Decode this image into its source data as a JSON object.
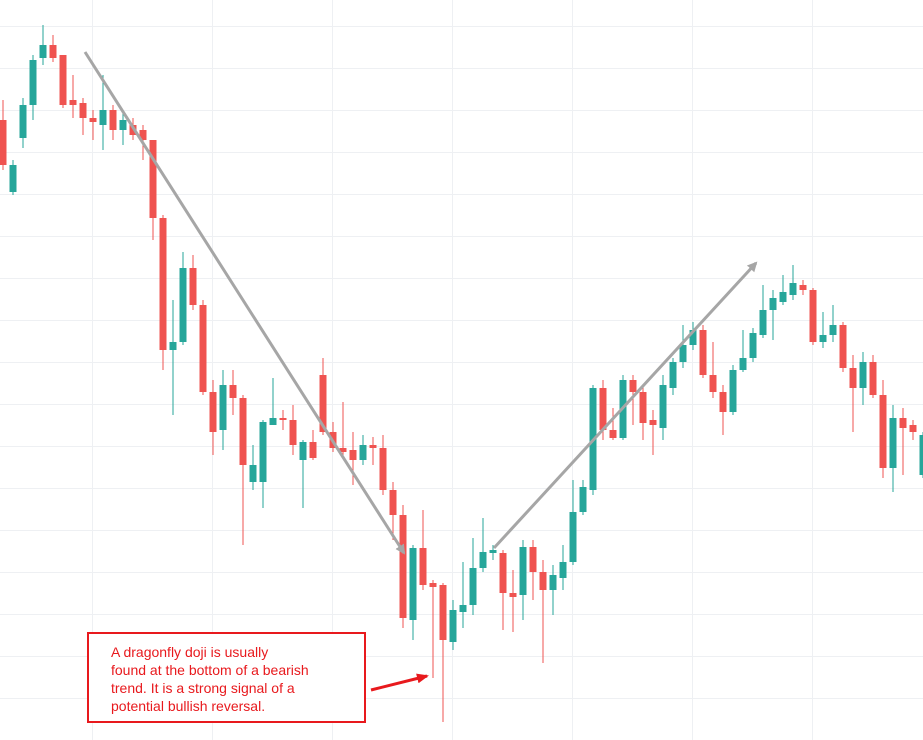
{
  "chart_data": {
    "type": "candlestick",
    "open": [
      620,
      548,
      602,
      635,
      682,
      695,
      685,
      640,
      637,
      622,
      615,
      630,
      610,
      615,
      610,
      600,
      522,
      390,
      398,
      472,
      435,
      348,
      310,
      355,
      342,
      258,
      258,
      315,
      322,
      320,
      280,
      298,
      365,
      308,
      292,
      290,
      280,
      295,
      292,
      250,
      225,
      120,
      192,
      157,
      155,
      98,
      128,
      135,
      172,
      187,
      187,
      147,
      145,
      193,
      168,
      150,
      162,
      178,
      228,
      250,
      352,
      310,
      302,
      360,
      348,
      320,
      312,
      352,
      378,
      395,
      410,
      365,
      348,
      328,
      370,
      382,
      405,
      430,
      438,
      445,
      455,
      450,
      398,
      405,
      415,
      372,
      352,
      378,
      345,
      272,
      322,
      315,
      265
    ],
    "high": [
      640,
      580,
      642,
      685,
      715,
      705,
      685,
      665,
      642,
      630,
      665,
      635,
      630,
      622,
      615,
      600,
      525,
      440,
      488,
      485,
      440,
      360,
      370,
      370,
      345,
      295,
      320,
      362,
      330,
      335,
      300,
      310,
      382,
      318,
      338,
      308,
      305,
      303,
      305,
      258,
      235,
      195,
      230,
      160,
      157,
      140,
      178,
      202,
      222,
      195,
      190,
      170,
      200,
      200,
      180,
      175,
      195,
      260,
      260,
      355,
      360,
      332,
      365,
      365,
      355,
      330,
      365,
      382,
      415,
      418,
      415,
      398,
      355,
      375,
      410,
      412,
      455,
      450,
      465,
      475,
      460,
      452,
      428,
      435,
      418,
      385,
      388,
      385,
      360,
      335,
      332,
      320,
      308
    ],
    "low": [
      570,
      545,
      592,
      620,
      675,
      678,
      632,
      622,
      605,
      600,
      590,
      600,
      595,
      600,
      580,
      500,
      370,
      325,
      395,
      430,
      345,
      285,
      290,
      325,
      195,
      250,
      232,
      315,
      310,
      285,
      232,
      280,
      305,
      288,
      282,
      255,
      275,
      275,
      245,
      200,
      112,
      100,
      150,
      62,
      18,
      90,
      112,
      125,
      168,
      180,
      110,
      108,
      120,
      140,
      77,
      125,
      150,
      175,
      225,
      245,
      300,
      300,
      300,
      315,
      300,
      285,
      300,
      345,
      372,
      390,
      362,
      342,
      305,
      325,
      368,
      378,
      402,
      400,
      435,
      440,
      445,
      395,
      392,
      398,
      368,
      308,
      335,
      342,
      262,
      248,
      265,
      300,
      262
    ],
    "close": [
      575,
      575,
      635,
      680,
      695,
      682,
      635,
      635,
      622,
      618,
      630,
      610,
      620,
      605,
      600,
      522,
      390,
      398,
      472,
      435,
      348,
      308,
      355,
      342,
      275,
      275,
      318,
      322,
      320,
      295,
      298,
      282,
      308,
      292,
      288,
      280,
      295,
      292,
      250,
      225,
      122,
      192,
      155,
      153,
      100,
      130,
      135,
      172,
      188,
      190,
      147,
      143,
      193,
      168,
      150,
      165,
      178,
      228,
      253,
      352,
      310,
      302,
      360,
      348,
      317,
      315,
      355,
      378,
      395,
      410,
      365,
      348,
      328,
      370,
      382,
      407,
      430,
      442,
      448,
      457,
      450,
      398,
      405,
      415,
      372,
      352,
      378,
      345,
      272,
      322,
      312,
      308,
      305
    ],
    "ylim": [
      0,
      740
    ],
    "up_color": "#26a69a",
    "down_color": "#ef5350",
    "annotation": [
      "A dragonfly doji is usually",
      "found at the bottom of a bearish",
      "trend. It is a strong signal of a",
      "potential bullish reversal."
    ]
  }
}
